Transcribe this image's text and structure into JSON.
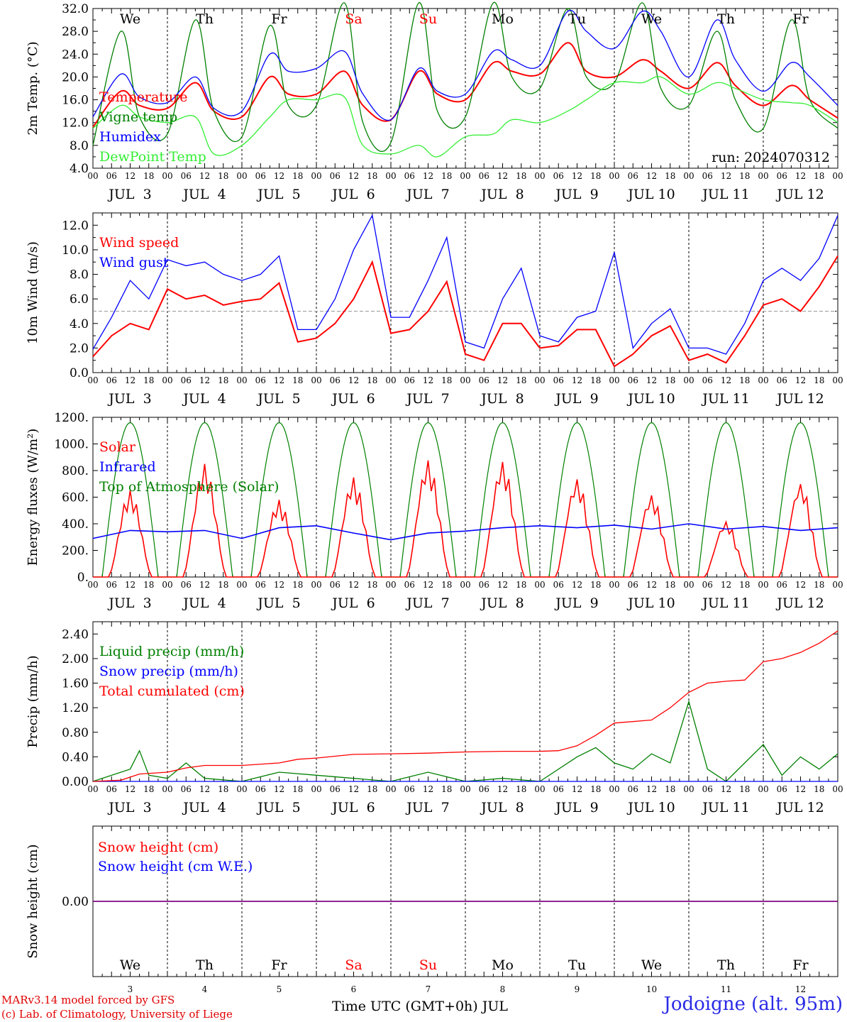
{
  "run_label": "run: 2024070312",
  "model_credit": "MARv3.14 model forced by GFS",
  "lab_credit": "(c) Lab. of Climatology, University of Liege",
  "station": "Jodoigne (alt. 95m)",
  "x_axis_title": "Time UTC (GMT+0h) JUL",
  "hour_ticks": [
    "00",
    "06",
    "12",
    "18"
  ],
  "days": [
    {
      "label": "JUL  3",
      "num": "3",
      "dow": "We",
      "weekend": false
    },
    {
      "label": "JUL  4",
      "num": "4",
      "dow": "Th",
      "weekend": false
    },
    {
      "label": "JUL  5",
      "num": "5",
      "dow": "Fr",
      "weekend": false
    },
    {
      "label": "JUL  6",
      "num": "6",
      "dow": "Sa",
      "weekend": true
    },
    {
      "label": "JUL  7",
      "num": "7",
      "dow": "Su",
      "weekend": true
    },
    {
      "label": "JUL  8",
      "num": "8",
      "dow": "Mo",
      "weekend": false
    },
    {
      "label": "JUL  9",
      "num": "9",
      "dow": "Tu",
      "weekend": false
    },
    {
      "label": "JUL 10",
      "num": "10",
      "dow": "We",
      "weekend": false
    },
    {
      "label": "JUL 11",
      "num": "11",
      "dow": "Th",
      "weekend": false
    },
    {
      "label": "JUL 12",
      "num": "12",
      "dow": "Fr",
      "weekend": false
    }
  ],
  "colors": {
    "red": "#ff0000",
    "green": "#008000",
    "blue": "#0000ff",
    "lightgreen": "#33ee33",
    "purple": "#800080",
    "weekend": "#ff0000",
    "station": "#2a2ae6"
  },
  "chart_data": [
    {
      "type": "line",
      "ylabel": "2m Temp. (°C)",
      "ylim": [
        4,
        32
      ],
      "yticks": [
        "4.0",
        "8.0",
        "12.0",
        "16.0",
        "20.0",
        "24.0",
        "28.0",
        "32.0"
      ],
      "ytick_values": [
        4,
        8,
        12,
        16,
        20,
        24,
        28,
        32
      ],
      "x": [
        0,
        9,
        15,
        24,
        33,
        39,
        48,
        57,
        63,
        72,
        81,
        87,
        96,
        105,
        111,
        120,
        129,
        135,
        144,
        153,
        159,
        168,
        177,
        183,
        192,
        201,
        207,
        216,
        225,
        231,
        240
      ],
      "series": [
        {
          "name": "Temperature",
          "color": "#ff0000",
          "values": [
            11.2,
            17.5,
            15,
            14.5,
            19,
            14,
            13,
            20,
            17,
            17,
            21,
            15,
            12.5,
            21,
            17,
            16,
            22.5,
            21,
            20.5,
            26,
            21,
            20,
            23,
            21,
            18,
            22.5,
            18.5,
            15,
            18.5,
            16,
            12.8
          ]
        },
        {
          "name": "Vigne temp",
          "color": "#008000",
          "values": [
            8,
            28,
            13,
            10,
            30,
            14,
            9.5,
            29,
            15,
            15,
            33,
            12,
            8.5,
            33,
            14,
            13,
            33,
            20,
            18,
            32,
            20,
            19,
            33,
            18,
            15,
            28,
            16,
            11,
            30,
            16,
            11
          ]
        },
        {
          "name": "Humidex",
          "color": "#0000ff",
          "values": [
            13,
            20.5,
            16.5,
            15.5,
            20,
            14.5,
            14,
            24,
            21,
            21.5,
            24.5,
            17,
            12.5,
            21.5,
            17.5,
            17,
            24.5,
            23,
            22,
            31.5,
            28,
            25,
            31.5,
            28,
            20,
            30,
            23,
            17.5,
            22.5,
            20,
            15
          ]
        },
        {
          "name": "DewPoint Temp",
          "color": "#33ee33",
          "values": [
            11,
            15,
            13,
            12,
            13,
            6.5,
            8,
            13,
            16,
            16,
            16.5,
            8,
            6.5,
            8,
            6,
            9.5,
            10,
            12.5,
            12,
            14,
            16,
            19,
            19,
            20,
            17,
            19,
            18,
            16,
            15.5,
            15,
            12
          ]
        }
      ]
    },
    {
      "type": "line",
      "ylabel": "10m Wind (m/s)",
      "ylim": [
        0,
        13
      ],
      "yticks": [
        "0.0",
        "2.0",
        "4.0",
        "6.0",
        "8.0",
        "10.0",
        "12.0"
      ],
      "ytick_values": [
        0,
        2,
        4,
        6,
        8,
        10,
        12
      ],
      "reference_line": 5,
      "x": [
        0,
        6,
        12,
        18,
        24,
        30,
        36,
        42,
        48,
        54,
        60,
        66,
        72,
        78,
        84,
        90,
        96,
        102,
        108,
        114,
        120,
        126,
        132,
        138,
        144,
        150,
        156,
        162,
        168,
        174,
        180,
        186,
        192,
        198,
        204,
        210,
        216,
        222,
        228,
        234,
        240
      ],
      "series": [
        {
          "name": "Wind speed",
          "color": "#ff0000",
          "values": [
            1.3,
            3,
            4,
            3.5,
            6.8,
            6,
            6.3,
            5.5,
            5.8,
            6,
            7.3,
            2.5,
            2.8,
            4,
            6,
            9,
            3.2,
            3.5,
            5,
            7.4,
            1.5,
            1,
            4,
            4,
            2,
            2.2,
            3.5,
            3.5,
            0.5,
            1.5,
            3,
            3.8,
            1,
            1.5,
            0.8,
            3,
            5.5,
            6,
            5,
            7,
            9.5
          ]
        },
        {
          "name": "Wind gust",
          "color": "#0000ff",
          "values": [
            1.9,
            4.5,
            7.5,
            6,
            9.2,
            8.7,
            9,
            8,
            7.5,
            8,
            9.5,
            3.5,
            3.5,
            6,
            10,
            12.8,
            4.5,
            4.5,
            7.5,
            11,
            2.5,
            2,
            6,
            8.5,
            3,
            2.5,
            4.5,
            5,
            9.8,
            2,
            4,
            5.2,
            2,
            2,
            1.5,
            4,
            7.5,
            8.5,
            7.5,
            9.3,
            12.8
          ]
        }
      ]
    },
    {
      "type": "line",
      "ylabel": "Energy fluxes (W/m²)",
      "ylim": [
        0,
        1200
      ],
      "yticks": [
        "0.",
        "200.",
        "400.",
        "600.",
        "800.",
        "1000.",
        "1200."
      ],
      "ytick_values": [
        0,
        200,
        400,
        600,
        800,
        1000,
        1200
      ],
      "toa_daily_peak": 1160,
      "toa_sunrise_hour": 3,
      "toa_sunset_hour": 21,
      "solar_daily_peaks": [
        650,
        850,
        580,
        750,
        880,
        870,
        740,
        620,
        420,
        710
      ],
      "series": [
        {
          "name": "Solar",
          "color": "#ff0000"
        },
        {
          "name": "Infrared",
          "color": "#0000ff",
          "x": [
            0,
            12,
            24,
            36,
            48,
            60,
            72,
            84,
            96,
            108,
            120,
            132,
            144,
            156,
            168,
            180,
            192,
            204,
            216,
            228,
            240
          ],
          "values": [
            290,
            350,
            340,
            350,
            290,
            370,
            385,
            330,
            280,
            330,
            345,
            370,
            385,
            370,
            390,
            360,
            400,
            360,
            380,
            350,
            370
          ]
        },
        {
          "name": "Top of Atmosphere (Solar)",
          "color": "#008000"
        }
      ]
    },
    {
      "type": "line",
      "ylabel": "Precip (mm/h)",
      "ylim": [
        0,
        2.6
      ],
      "yticks": [
        "0.00",
        "0.40",
        "0.80",
        "1.20",
        "1.60",
        "2.00",
        "2.40"
      ],
      "ytick_values": [
        0,
        0.4,
        0.8,
        1.2,
        1.6,
        2.0,
        2.4
      ],
      "series": [
        {
          "name": "Liquid precip (mm/h)",
          "color": "#008000",
          "x": [
            0,
            12,
            15,
            18,
            24,
            30,
            36,
            48,
            60,
            72,
            84,
            96,
            108,
            120,
            132,
            144,
            156,
            162,
            168,
            174,
            180,
            186,
            192,
            198,
            201,
            204,
            216,
            222,
            228,
            234,
            240
          ],
          "values": [
            0,
            0.2,
            0.5,
            0.1,
            0.05,
            0.3,
            0.05,
            0,
            0.15,
            0.1,
            0.05,
            0,
            0.15,
            0,
            0.05,
            0,
            0.4,
            0.55,
            0.3,
            0.2,
            0.45,
            0.3,
            1.3,
            0.2,
            0.1,
            0,
            0.6,
            0.1,
            0.4,
            0.2,
            0.45
          ]
        },
        {
          "name": "Snow precip (mm/h)",
          "color": "#0000ff",
          "x": [
            0,
            240
          ],
          "values": [
            0,
            0
          ]
        },
        {
          "name": "Total cumulated (cm)",
          "color": "#ff0000",
          "x": [
            0,
            9,
            15,
            24,
            30,
            36,
            48,
            60,
            66,
            72,
            84,
            96,
            108,
            120,
            132,
            144,
            150,
            156,
            162,
            168,
            180,
            186,
            192,
            198,
            204,
            210,
            216,
            222,
            228,
            234,
            240
          ],
          "values": [
            0,
            0.02,
            0.12,
            0.15,
            0.22,
            0.26,
            0.26,
            0.3,
            0.36,
            0.38,
            0.44,
            0.45,
            0.46,
            0.48,
            0.49,
            0.49,
            0.5,
            0.58,
            0.75,
            0.95,
            1.0,
            1.2,
            1.45,
            1.6,
            1.63,
            1.65,
            1.95,
            2.0,
            2.1,
            2.25,
            2.45
          ]
        }
      ]
    },
    {
      "type": "line",
      "ylabel": "Snow height (cm)",
      "ylim": [
        -1,
        1
      ],
      "yticks": [
        "0.00"
      ],
      "ytick_values": [
        0
      ],
      "series": [
        {
          "name": "Snow height (cm)",
          "color": "#ff0000",
          "x": [
            0,
            240
          ],
          "values": [
            0,
            0
          ]
        },
        {
          "name": "Snow height (cm W.E.)",
          "color": "#0000ff",
          "x": [
            0,
            240
          ],
          "values": [
            0,
            0
          ]
        }
      ]
    }
  ]
}
